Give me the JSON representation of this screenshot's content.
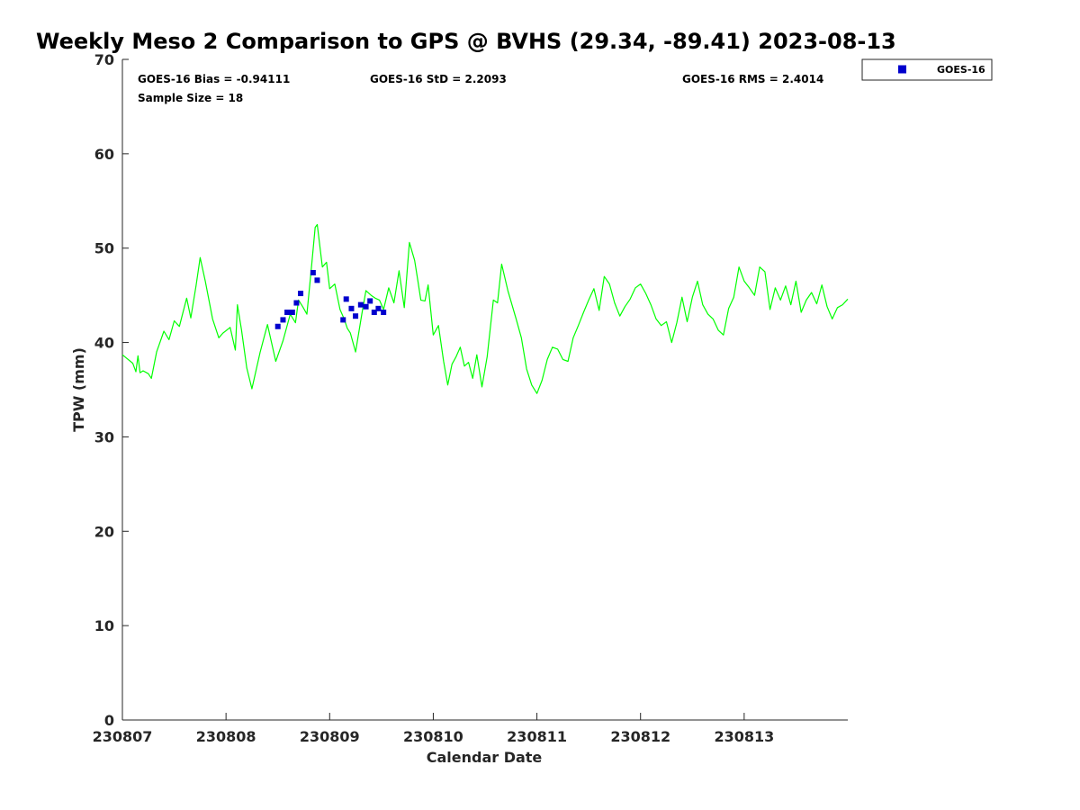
{
  "chart_data": {
    "type": "scatter",
    "title": "Weekly Meso 2 Comparison to GPS @ BVHS (29.34, -89.41) 2023-08-13",
    "xlabel": "Calendar Date",
    "ylabel": "TPW (mm)",
    "xlim": [
      0,
      7
    ],
    "ylim": [
      0,
      70
    ],
    "y_ticks": [
      0,
      10,
      20,
      30,
      40,
      50,
      60,
      70
    ],
    "x_tick_values": [
      0,
      1,
      2,
      3,
      4,
      5,
      6
    ],
    "x_tick_labels": [
      "230807",
      "230808",
      "230809",
      "230810",
      "230811",
      "230812",
      "230813"
    ],
    "stats": {
      "bias": "GOES-16 Bias = -0.94111",
      "std": "GOES-16 StD = 2.2093",
      "rms": "GOES-16 RMS = 2.4014",
      "sample": "Sample Size = 18"
    },
    "legend": {
      "position": "top-right",
      "entries": [
        "GOES-16"
      ]
    },
    "gps_line_color": "#00ff00",
    "goes_color": "#0000cd",
    "gps_series": {
      "x": [
        0.0,
        0.1,
        0.13,
        0.15,
        0.17,
        0.2,
        0.25,
        0.28,
        0.33,
        0.4,
        0.45,
        0.5,
        0.55,
        0.62,
        0.66,
        0.71,
        0.75,
        0.8,
        0.87,
        0.93,
        0.97,
        1.04,
        1.09,
        1.11,
        1.15,
        1.2,
        1.25,
        1.33,
        1.4,
        1.48,
        1.55,
        1.62,
        1.67,
        1.7,
        1.74,
        1.78,
        1.82,
        1.86,
        1.88,
        1.93,
        1.97,
        2.0,
        2.05,
        2.1,
        2.14,
        2.17,
        2.2,
        2.25,
        2.31,
        2.35,
        2.4,
        2.44,
        2.48,
        2.52,
        2.57,
        2.62,
        2.67,
        2.72,
        2.77,
        2.82,
        2.85,
        2.88,
        2.92,
        2.95,
        3.0,
        3.05,
        3.1,
        3.14,
        3.18,
        3.22,
        3.26,
        3.3,
        3.34,
        3.38,
        3.42,
        3.47,
        3.52,
        3.58,
        3.62,
        3.66,
        3.72,
        3.8,
        3.85,
        3.9,
        3.95,
        4.0,
        4.05,
        4.1,
        4.15,
        4.2,
        4.25,
        4.3,
        4.35,
        4.4,
        4.45,
        4.5,
        4.55,
        4.6,
        4.65,
        4.7,
        4.75,
        4.8,
        4.85,
        4.9,
        4.95,
        5.0,
        5.05,
        5.1,
        5.15,
        5.2,
        5.25,
        5.3,
        5.35,
        5.4,
        5.45,
        5.5,
        5.55,
        5.6,
        5.65,
        5.7,
        5.75,
        5.8,
        5.85,
        5.9,
        5.95,
        6.0,
        6.05,
        6.1,
        6.15,
        6.2,
        6.25,
        6.3,
        6.35,
        6.4,
        6.45,
        6.5,
        6.55,
        6.6,
        6.65,
        6.7,
        6.75,
        6.8,
        6.85,
        6.9,
        6.95,
        7.0
      ],
      "y": [
        38.7,
        37.8,
        36.9,
        38.6,
        36.8,
        37.0,
        36.7,
        36.2,
        39.0,
        41.2,
        40.3,
        42.3,
        41.7,
        44.7,
        42.6,
        46.0,
        49.0,
        46.5,
        42.5,
        40.5,
        41.0,
        41.6,
        39.2,
        44.0,
        41.3,
        37.3,
        35.1,
        39.0,
        41.9,
        38.0,
        40.2,
        43.0,
        42.1,
        44.5,
        43.8,
        43.0,
        47.5,
        52.2,
        52.5,
        48.0,
        48.5,
        45.7,
        46.2,
        43.5,
        42.5,
        41.5,
        41.0,
        39.0,
        43.0,
        45.5,
        45.0,
        44.7,
        44.5,
        43.5,
        45.8,
        44.2,
        47.6,
        43.7,
        50.6,
        48.7,
        46.6,
        44.5,
        44.4,
        46.1,
        40.8,
        41.8,
        38.0,
        35.5,
        37.7,
        38.5,
        39.5,
        37.5,
        37.9,
        36.2,
        38.7,
        35.3,
        38.5,
        44.5,
        44.2,
        48.3,
        45.5,
        42.5,
        40.5,
        37.2,
        35.5,
        34.6,
        36.0,
        38.2,
        39.5,
        39.3,
        38.2,
        38.0,
        40.5,
        41.8,
        43.2,
        44.5,
        45.7,
        43.4,
        47.0,
        46.2,
        44.2,
        42.8,
        43.8,
        44.6,
        45.8,
        46.2,
        45.2,
        44.0,
        42.5,
        41.8,
        42.2,
        40.0,
        42.1,
        44.8,
        42.2,
        44.8,
        46.5,
        44.0,
        43.0,
        42.5,
        41.3,
        40.8,
        43.6,
        44.8,
        48.0,
        46.5,
        45.8,
        45.0,
        48.0,
        47.5,
        43.5,
        45.8,
        44.5,
        46.0,
        44.0,
        46.5,
        43.2,
        44.5,
        45.3,
        44.1,
        46.1,
        43.8,
        42.5,
        43.7,
        44.0,
        44.6
      ]
    },
    "goes_series": {
      "name": "GOES-16",
      "x": [
        1.5,
        1.55,
        1.59,
        1.64,
        1.68,
        1.72,
        1.84,
        1.88,
        2.13,
        2.16,
        2.21,
        2.25,
        2.3,
        2.35,
        2.39,
        2.43,
        2.47,
        2.52
      ],
      "y": [
        41.7,
        42.4,
        43.2,
        43.2,
        44.2,
        45.2,
        47.4,
        46.6,
        42.4,
        44.6,
        43.6,
        42.8,
        44.0,
        43.8,
        44.4,
        43.2,
        43.6,
        43.2
      ]
    }
  }
}
